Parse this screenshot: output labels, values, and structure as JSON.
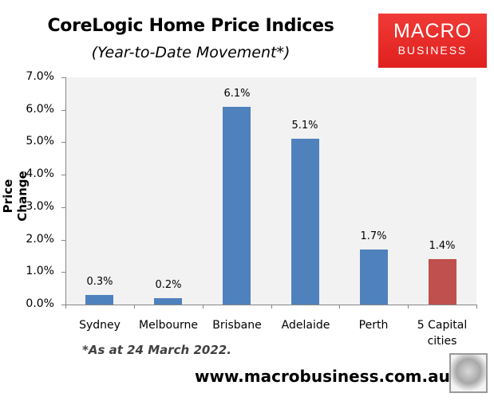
{
  "header": {
    "title": "CoreLogic Home Price Indices",
    "subtitle": "(Year-to-Date Movement*)"
  },
  "logo": {
    "line1": "MACRO",
    "line2": "BUSINESS",
    "color": "#e8272a"
  },
  "footer": {
    "footnote": "*As at 24 March 2022.",
    "website": "www.macrobusiness.com.au",
    "mascot_icon": "fox-icon"
  },
  "chart_data": {
    "type": "bar",
    "title": "CoreLogic Home Price Indices",
    "subtitle": "(Year-to-Date Movement*)",
    "xlabel": "",
    "ylabel": "Price Change",
    "categories": [
      "Sydney",
      "Melbourne",
      "Brisbane",
      "Adelaide",
      "Perth",
      "5 Capital cities"
    ],
    "values": [
      0.3,
      0.2,
      6.1,
      5.1,
      1.7,
      1.4
    ],
    "value_labels": [
      "0.3%",
      "0.2%",
      "6.1%",
      "5.1%",
      "1.7%",
      "1.4%"
    ],
    "bar_colors": [
      "#4f81bd",
      "#4f81bd",
      "#4f81bd",
      "#4f81bd",
      "#4f81bd",
      "#c0504d"
    ],
    "ylim": [
      0,
      7
    ],
    "yticks": [
      "0.0%",
      "1.0%",
      "2.0%",
      "3.0%",
      "4.0%",
      "5.0%",
      "6.0%",
      "7.0%"
    ],
    "grid": false,
    "legend": "none",
    "plot_background": "#f2f2f2",
    "annotation": "*As at 24 March 2022."
  }
}
